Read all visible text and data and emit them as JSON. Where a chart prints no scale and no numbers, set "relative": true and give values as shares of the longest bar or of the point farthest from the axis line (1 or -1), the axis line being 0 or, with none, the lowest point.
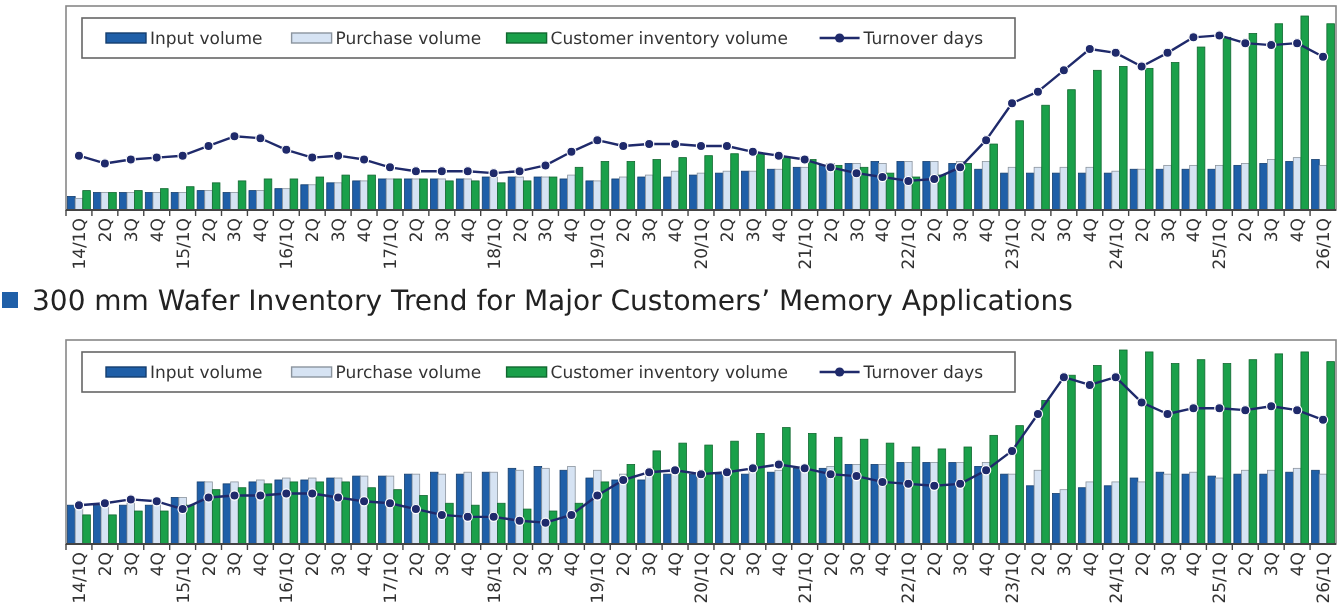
{
  "chart_data": [
    {
      "type": "bar",
      "relative": true,
      "legend": "top",
      "marker": "circle",
      "tick_labels": "x",
      "categories": [
        "14/1Q",
        "2Q",
        "3Q",
        "4Q",
        "15/1Q",
        "2Q",
        "3Q",
        "4Q",
        "16/1Q",
        "2Q",
        "3Q",
        "4Q",
        "17/1Q",
        "2Q",
        "3Q",
        "4Q",
        "18/1Q",
        "2Q",
        "3Q",
        "4Q",
        "19/1Q",
        "2Q",
        "3Q",
        "4Q",
        "20/1Q",
        "2Q",
        "3Q",
        "4Q",
        "21/1Q",
        "2Q",
        "3Q",
        "4Q",
        "22/1Q",
        "2Q",
        "3Q",
        "4Q",
        "23/1Q",
        "2Q",
        "3Q",
        "4Q",
        "24/1Q",
        "2Q",
        "3Q",
        "4Q",
        "25/1Q",
        "2Q",
        "3Q",
        "4Q",
        "26/1Q"
      ],
      "series": [
        {
          "name": "Input volume",
          "color": "#1f5fa8",
          "values": [
            0.07,
            0.09,
            0.09,
            0.09,
            0.09,
            0.1,
            0.09,
            0.1,
            0.11,
            0.13,
            0.14,
            0.15,
            0.16,
            0.16,
            0.16,
            0.16,
            0.17,
            0.17,
            0.17,
            0.16,
            0.15,
            0.16,
            0.17,
            0.17,
            0.18,
            0.19,
            0.2,
            0.21,
            0.22,
            0.23,
            0.24,
            0.25,
            0.25,
            0.25,
            0.24,
            0.21,
            0.19,
            0.19,
            0.19,
            0.19,
            0.19,
            0.21,
            0.21,
            0.21,
            0.21,
            0.23,
            0.24,
            0.25,
            0.26
          ]
        },
        {
          "name": "Purchase volume",
          "color": "#d6e3f3",
          "values": [
            0.06,
            0.09,
            0.09,
            0.09,
            0.09,
            0.1,
            0.09,
            0.1,
            0.11,
            0.13,
            0.14,
            0.15,
            0.16,
            0.16,
            0.16,
            0.16,
            0.17,
            0.17,
            0.17,
            0.18,
            0.15,
            0.17,
            0.18,
            0.2,
            0.19,
            0.2,
            0.2,
            0.21,
            0.22,
            0.24,
            0.24,
            0.24,
            0.25,
            0.25,
            0.25,
            0.25,
            0.22,
            0.22,
            0.22,
            0.22,
            0.2,
            0.21,
            0.23,
            0.23,
            0.23,
            0.24,
            0.26,
            0.27,
            0.23
          ]
        },
        {
          "name": "Customer inventory volume",
          "color": "#1aa04a",
          "values": [
            0.1,
            0.09,
            0.1,
            0.11,
            0.12,
            0.14,
            0.15,
            0.16,
            0.16,
            0.17,
            0.18,
            0.18,
            0.16,
            0.16,
            0.15,
            0.15,
            0.14,
            0.15,
            0.17,
            0.22,
            0.25,
            0.25,
            0.26,
            0.27,
            0.28,
            0.29,
            0.29,
            0.27,
            0.26,
            0.23,
            0.22,
            0.19,
            0.17,
            0.18,
            0.24,
            0.34,
            0.46,
            0.54,
            0.62,
            0.72,
            0.74,
            0.73,
            0.76,
            0.84,
            0.89,
            0.91,
            0.96,
            1.0,
            0.96
          ]
        },
        {
          "name": "Turnover days",
          "type": "line",
          "color": "#1f2a6b",
          "values": [
            0.28,
            0.24,
            0.26,
            0.27,
            0.28,
            0.33,
            0.38,
            0.37,
            0.31,
            0.27,
            0.28,
            0.26,
            0.22,
            0.2,
            0.2,
            0.2,
            0.19,
            0.2,
            0.23,
            0.3,
            0.36,
            0.33,
            0.34,
            0.34,
            0.33,
            0.33,
            0.3,
            0.28,
            0.26,
            0.22,
            0.19,
            0.17,
            0.15,
            0.16,
            0.22,
            0.36,
            0.55,
            0.61,
            0.72,
            0.83,
            0.81,
            0.74,
            0.81,
            0.89,
            0.9,
            0.86,
            0.85,
            0.86,
            0.79
          ]
        }
      ]
    },
    {
      "type": "bar",
      "relative": true,
      "legend": "top",
      "marker": "circle",
      "tick_labels": "x",
      "title": "300 mm Wafer Inventory Trend for Major Customers’ Memory Applications",
      "categories": [
        "14/1Q",
        "2Q",
        "3Q",
        "4Q",
        "15/1Q",
        "2Q",
        "3Q",
        "4Q",
        "16/1Q",
        "2Q",
        "3Q",
        "4Q",
        "17/1Q",
        "2Q",
        "3Q",
        "4Q",
        "18/1Q",
        "2Q",
        "3Q",
        "4Q",
        "19/1Q",
        "2Q",
        "3Q",
        "4Q",
        "20/1Q",
        "2Q",
        "3Q",
        "4Q",
        "21/1Q",
        "2Q",
        "3Q",
        "4Q",
        "22/1Q",
        "2Q",
        "3Q",
        "4Q",
        "23/1Q",
        "2Q",
        "3Q",
        "4Q",
        "24/1Q",
        "2Q",
        "3Q",
        "4Q",
        "25/1Q",
        "2Q",
        "3Q",
        "4Q",
        "26/1Q"
      ],
      "series": [
        {
          "name": "Input volume",
          "color": "#1f5fa8",
          "values": [
            0.2,
            0.2,
            0.2,
            0.2,
            0.24,
            0.32,
            0.31,
            0.32,
            0.33,
            0.33,
            0.34,
            0.35,
            0.35,
            0.36,
            0.37,
            0.36,
            0.37,
            0.39,
            0.4,
            0.38,
            0.34,
            0.33,
            0.33,
            0.36,
            0.36,
            0.36,
            0.36,
            0.37,
            0.39,
            0.39,
            0.41,
            0.41,
            0.42,
            0.42,
            0.42,
            0.4,
            0.36,
            0.3,
            0.26,
            0.29,
            0.3,
            0.34,
            0.37,
            0.36,
            0.35,
            0.36,
            0.36,
            0.37,
            0.38
          ]
        },
        {
          "name": "Purchase volume",
          "color": "#d6e3f3",
          "values": [
            0.19,
            0.21,
            0.21,
            0.22,
            0.24,
            0.32,
            0.32,
            0.33,
            0.34,
            0.34,
            0.34,
            0.35,
            0.35,
            0.36,
            0.36,
            0.37,
            0.37,
            0.38,
            0.39,
            0.4,
            0.38,
            0.36,
            0.38,
            0.39,
            0.36,
            0.37,
            0.38,
            0.38,
            0.39,
            0.4,
            0.41,
            0.41,
            0.42,
            0.42,
            0.42,
            0.42,
            0.36,
            0.38,
            0.28,
            0.32,
            0.32,
            0.32,
            0.36,
            0.37,
            0.34,
            0.38,
            0.38,
            0.39,
            0.36
          ]
        },
        {
          "name": "Customer inventory volume",
          "color": "#1aa04a",
          "values": [
            0.15,
            0.15,
            0.17,
            0.17,
            0.2,
            0.28,
            0.29,
            0.31,
            0.32,
            0.32,
            0.32,
            0.29,
            0.28,
            0.25,
            0.21,
            0.2,
            0.21,
            0.18,
            0.17,
            0.21,
            0.32,
            0.41,
            0.48,
            0.52,
            0.51,
            0.53,
            0.57,
            0.6,
            0.57,
            0.55,
            0.54,
            0.52,
            0.5,
            0.49,
            0.5,
            0.56,
            0.61,
            0.74,
            0.87,
            0.92,
            1.0,
            0.99,
            0.93,
            0.95,
            0.93,
            0.95,
            0.98,
            0.99,
            0.94
          ]
        },
        {
          "name": "Turnover days",
          "type": "line",
          "color": "#1f2a6b",
          "values": [
            0.2,
            0.21,
            0.23,
            0.22,
            0.18,
            0.24,
            0.25,
            0.25,
            0.26,
            0.26,
            0.24,
            0.22,
            0.21,
            0.18,
            0.15,
            0.14,
            0.14,
            0.12,
            0.11,
            0.15,
            0.25,
            0.33,
            0.37,
            0.38,
            0.36,
            0.37,
            0.39,
            0.41,
            0.39,
            0.36,
            0.35,
            0.32,
            0.31,
            0.3,
            0.31,
            0.38,
            0.48,
            0.67,
            0.86,
            0.82,
            0.86,
            0.73,
            0.67,
            0.7,
            0.7,
            0.69,
            0.71,
            0.69,
            0.64
          ]
        }
      ]
    }
  ]
}
